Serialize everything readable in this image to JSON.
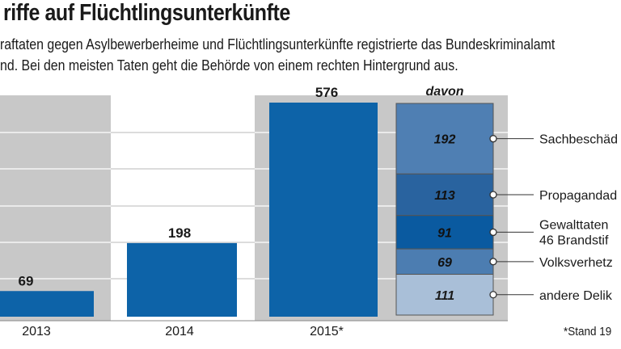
{
  "header": {
    "title": "riffe auf Flüchtlingsunterkünfte",
    "subtitle_line1": "raftaten gegen Asylbewerberheime und Flüchtlingsunterkünfte registrierte das Bundeskriminalamt",
    "subtitle_line2": "nd. Bei den meisten Taten geht die Behörde von einem rechten Hintergrund aus."
  },
  "footnote": "*Stand 19",
  "colors": {
    "bar": "#0d63a8",
    "panel_grey": "#c8c8c8",
    "stack_border": "#555555"
  },
  "chart_data": {
    "type": "bar",
    "categories": [
      "2013",
      "2014",
      "2015*"
    ],
    "values": [
      69,
      198,
      576
    ],
    "value_labels": [
      "69",
      "198",
      "576"
    ],
    "grid": true,
    "breakdown": {
      "title": "davon",
      "category": "2015*",
      "segments": [
        {
          "label": "Sachbeschäd",
          "value": 192,
          "value_label": "192",
          "color": "#4f7fb3"
        },
        {
          "label": "Propagandad",
          "value": 113,
          "value_label": "113",
          "color": "#29639f"
        },
        {
          "label": "Gewalttaten",
          "label2": "46 Brandstif",
          "value": 91,
          "value_label": "91",
          "color": "#0a5aa0"
        },
        {
          "label": "Volksverhetz",
          "value": 69,
          "value_label": "69",
          "color": "#4c7db1"
        },
        {
          "label": "andere Delik",
          "value": 111,
          "value_label": "111",
          "color": "#a9bfd8"
        }
      ]
    }
  }
}
